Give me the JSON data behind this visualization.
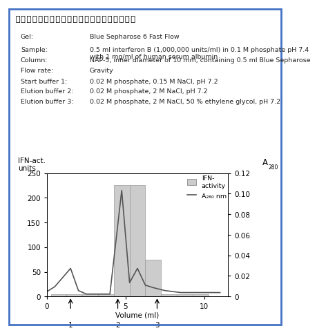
{
  "title": "ヒト血清アルブミンとインターフェロンの精製",
  "info_lines": [
    [
      "Gel:",
      "Blue Sepharose 6 Fast Flow"
    ],
    [
      "Sample:",
      "0.5 ml interferon B (1,000,000 units/ml) in 0.1 M phosphate pH 7.4\nwith 1 mg/ml of human serum albumin"
    ],
    [
      "Column:",
      "NAP-5, inner diameter of 10 mm, containing 0.5 ml Blue Sepharose"
    ],
    [
      "Flow rate:",
      "Gravity"
    ],
    [
      "Start buffer 1:",
      "0.02 M phosphate, 0.15 M NaCl, pH 7.2"
    ],
    [
      "Elution buffer 2:",
      "0.02 M phosphate, 2 M NaCl, pH 7.2"
    ],
    [
      "Elution buffer 3:",
      "0.02 M phosphate, 2 M NaCl, 50 % ethylene glycol, pH 7.2"
    ]
  ],
  "bar_centers": [
    0.75,
    1.75,
    2.75,
    3.75,
    4.75,
    5.75,
    6.75,
    7.75,
    8.75,
    9.75
  ],
  "bar_heights": [
    5,
    5,
    5,
    5,
    225,
    225,
    75,
    5,
    5,
    5
  ],
  "bar_width": 1.0,
  "line_x": [
    0.0,
    0.5,
    1.5,
    2.0,
    2.5,
    3.0,
    3.5,
    4.0,
    4.75,
    5.25,
    5.75,
    6.25,
    6.75,
    7.5,
    8.5,
    10.0,
    11.0
  ],
  "line_y_left": [
    10,
    20,
    57,
    12,
    5,
    5,
    5,
    5,
    215,
    28,
    57,
    23,
    18,
    12,
    8,
    8,
    8
  ],
  "line_color": "#555555",
  "bar_color": "#cccccc",
  "bar_edge_color": "#999999",
  "xlabel": "Volume (ml)",
  "ylim_left": [
    0,
    250
  ],
  "ylim_right": [
    0,
    0.12
  ],
  "xlim": [
    0,
    11.5
  ],
  "yticks_left": [
    0,
    50,
    100,
    150,
    200,
    250
  ],
  "yticks_right": [
    0,
    0.02,
    0.04,
    0.06,
    0.08,
    0.1,
    0.12
  ],
  "xticks": [
    0,
    5,
    10
  ],
  "arrows": [
    {
      "x": 1.5,
      "label": "1"
    },
    {
      "x": 4.5,
      "label": "2"
    },
    {
      "x": 7.0,
      "label": "3"
    }
  ],
  "legend_bar_label": "IFN-\nactivity",
  "legend_line_label": "A₂₈₀ nm",
  "background_color": "#ffffff",
  "border_color": "#4472c4",
  "title_fontsize": 14,
  "info_fontsize": 6.8,
  "axis_fontsize": 7.5
}
